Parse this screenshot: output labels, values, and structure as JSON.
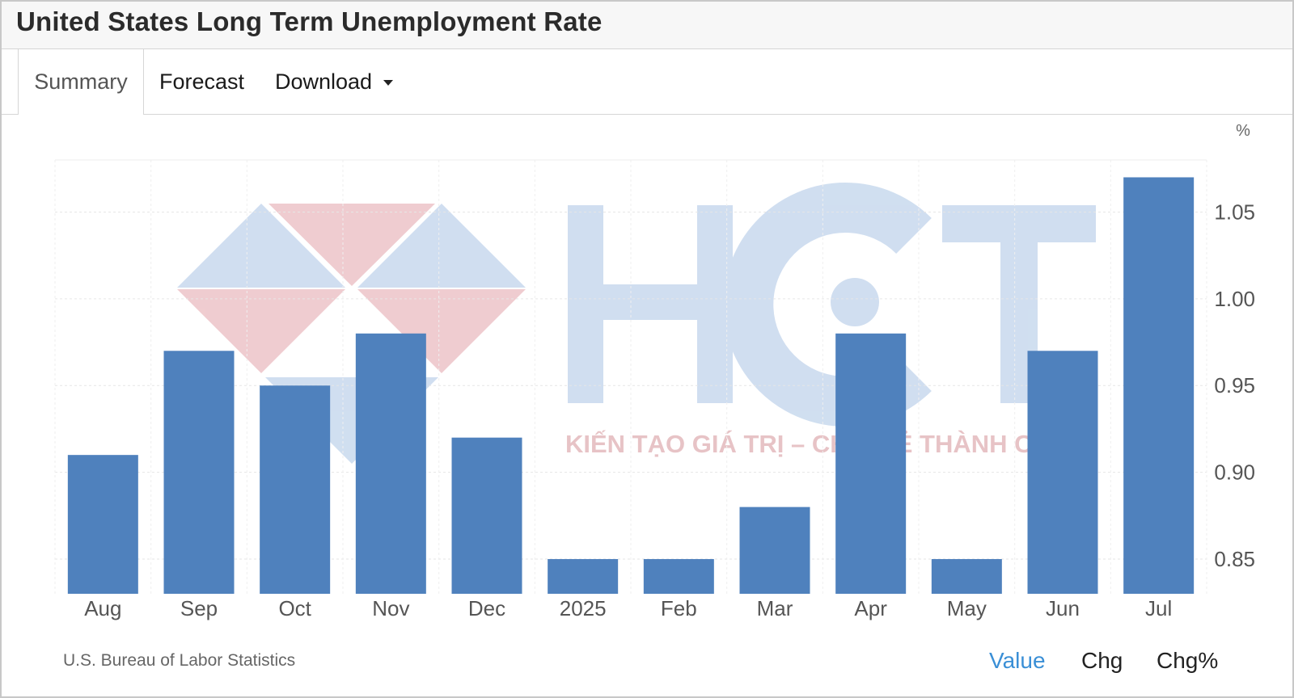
{
  "header": {
    "title": "United States Long Term Unemployment Rate"
  },
  "tabs": {
    "summary": "Summary",
    "forecast": "Forecast",
    "download": "Download"
  },
  "watermark": {
    "brand": "HCT",
    "tagline": "KIẾN TẠO GIÁ TRỊ – CHIA SẺ THÀNH CÔNG"
  },
  "footer": {
    "source": "U.S. Bureau of Labor Statistics",
    "options": {
      "value": "Value",
      "chg": "Chg",
      "chg_pct": "Chg%"
    }
  },
  "colors": {
    "bar": "#4f81bd",
    "active_option": "#3a8fd6"
  },
  "chart_data": {
    "type": "bar",
    "categories": [
      "Aug",
      "Sep",
      "Oct",
      "Nov",
      "Dec",
      "2025",
      "Feb",
      "Mar",
      "Apr",
      "May",
      "Jun",
      "Jul"
    ],
    "values": [
      0.91,
      0.97,
      0.95,
      0.98,
      0.92,
      0.85,
      0.85,
      0.88,
      0.98,
      0.85,
      0.97,
      1.07
    ],
    "unit_label": "%",
    "yticks": [
      "0.85",
      "0.90",
      "0.95",
      "1.00",
      "1.05"
    ],
    "ylim": [
      0.83,
      1.08
    ],
    "y_axis_position": "right",
    "grid": true,
    "title": "",
    "xlabel": "",
    "ylabel": ""
  }
}
